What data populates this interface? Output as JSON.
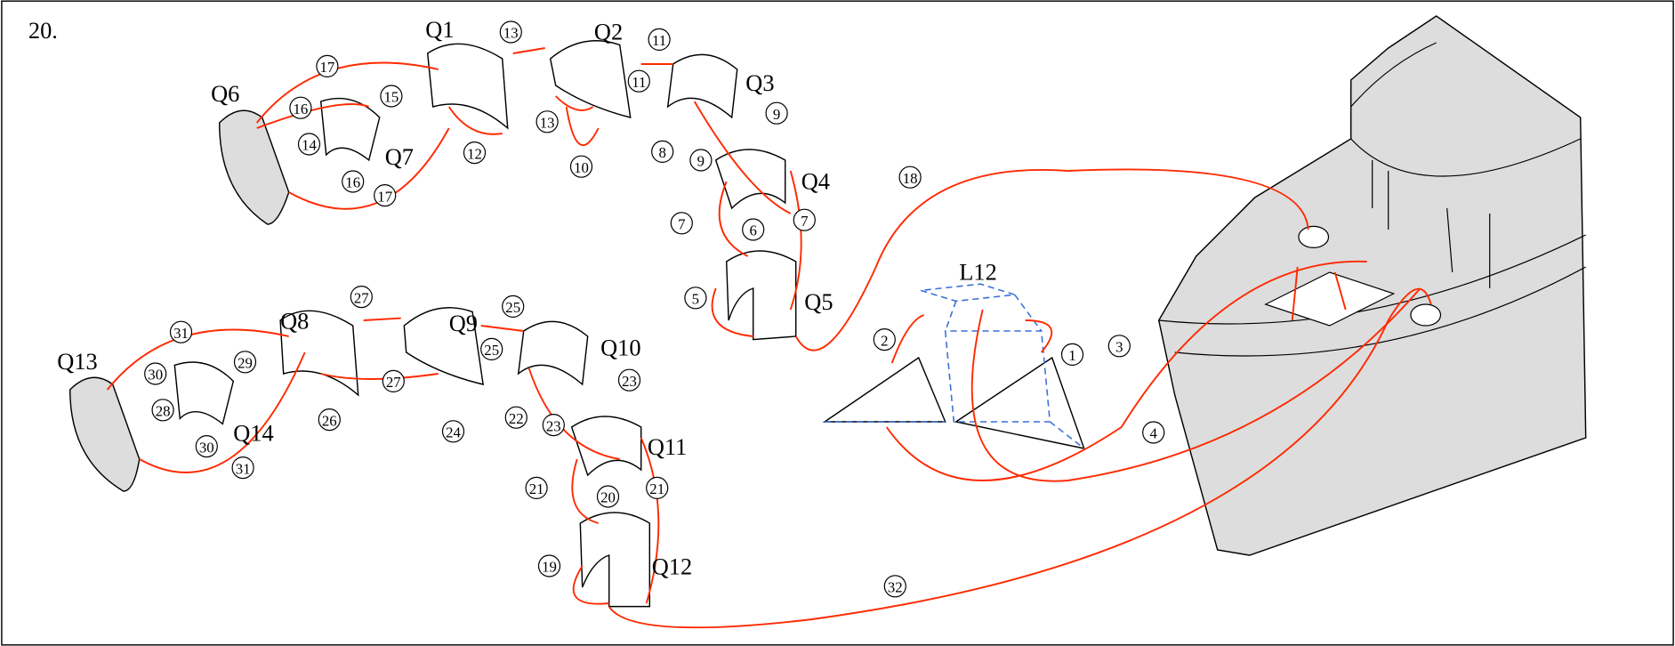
{
  "step": "20.",
  "parts": [
    {
      "label": "Q1"
    },
    {
      "label": "Q2"
    },
    {
      "label": "Q3"
    },
    {
      "label": "Q4"
    },
    {
      "label": "Q5"
    },
    {
      "label": "Q6"
    },
    {
      "label": "Q7"
    },
    {
      "label": "Q8"
    },
    {
      "label": "Q9"
    },
    {
      "label": "Q10"
    },
    {
      "label": "Q11"
    },
    {
      "label": "Q12"
    },
    {
      "label": "Q13"
    },
    {
      "label": "Q14"
    },
    {
      "label": "L12"
    }
  ],
  "callouts": [
    17,
    17,
    16,
    16,
    15,
    14,
    13,
    13,
    12,
    11,
    11,
    10,
    9,
    9,
    8,
    7,
    7,
    6,
    5,
    18,
    1,
    2,
    3,
    4,
    31,
    31,
    30,
    30,
    29,
    28,
    27,
    27,
    26,
    25,
    25,
    24,
    23,
    23,
    22,
    21,
    21,
    20,
    19,
    32
  ]
}
